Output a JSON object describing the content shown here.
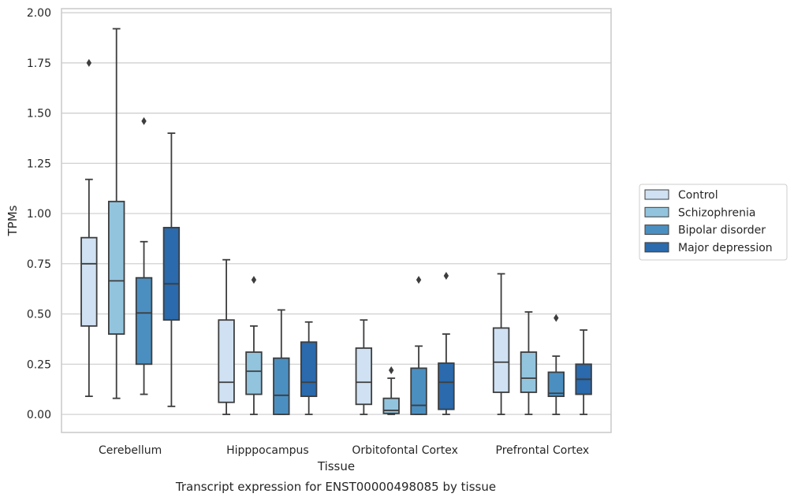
{
  "chart_data": {
    "type": "box",
    "title": "",
    "caption": "Transcript expression for ENST00000498085 by tissue",
    "xlabel": "Tissue",
    "ylabel": "TPMs",
    "ylim": [
      -0.09,
      2.02
    ],
    "yticks": [
      "0.00",
      "0.25",
      "0.50",
      "0.75",
      "1.00",
      "1.25",
      "1.50",
      "1.75",
      "2.00"
    ],
    "grid": "horizontal",
    "legend_position": "right",
    "categories": [
      "Cerebellum",
      "Hipppocampus",
      "Orbitofontal Cortex",
      "Prefrontal Cortex"
    ],
    "series": [
      {
        "name": "Control",
        "color": "#cfe1f2",
        "boxes": [
          {
            "whislo": 0.09,
            "q1": 0.44,
            "med": 0.75,
            "q3": 0.88,
            "whishi": 1.17,
            "fliers": [
              1.75
            ]
          },
          {
            "whislo": 0.0,
            "q1": 0.06,
            "med": 0.16,
            "q3": 0.47,
            "whishi": 0.77,
            "fliers": []
          },
          {
            "whislo": 0.0,
            "q1": 0.05,
            "med": 0.16,
            "q3": 0.33,
            "whishi": 0.47,
            "fliers": []
          },
          {
            "whislo": 0.0,
            "q1": 0.11,
            "med": 0.26,
            "q3": 0.43,
            "whishi": 0.7,
            "fliers": []
          }
        ]
      },
      {
        "name": "Schizophrenia",
        "color": "#93c4de",
        "boxes": [
          {
            "whislo": 0.08,
            "q1": 0.4,
            "med": 0.665,
            "q3": 1.06,
            "whishi": 1.92,
            "fliers": []
          },
          {
            "whislo": 0.0,
            "q1": 0.1,
            "med": 0.215,
            "q3": 0.31,
            "whishi": 0.44,
            "fliers": [
              0.67
            ]
          },
          {
            "whislo": 0.0,
            "q1": 0.005,
            "med": 0.02,
            "q3": 0.08,
            "whishi": 0.18,
            "fliers": [
              0.22
            ]
          },
          {
            "whislo": 0.0,
            "q1": 0.11,
            "med": 0.18,
            "q3": 0.31,
            "whishi": 0.51,
            "fliers": []
          }
        ]
      },
      {
        "name": "Bipolar disorder",
        "color": "#4b8fc1",
        "boxes": [
          {
            "whislo": 0.1,
            "q1": 0.25,
            "med": 0.505,
            "q3": 0.68,
            "whishi": 0.86,
            "fliers": [
              1.46
            ]
          },
          {
            "whislo": 0.0,
            "q1": 0.0,
            "med": 0.095,
            "q3": 0.28,
            "whishi": 0.52,
            "fliers": []
          },
          {
            "whislo": 0.0,
            "q1": 0.0,
            "med": 0.045,
            "q3": 0.23,
            "whishi": 0.34,
            "fliers": [
              0.67
            ]
          },
          {
            "whislo": 0.0,
            "q1": 0.09,
            "med": 0.105,
            "q3": 0.21,
            "whishi": 0.29,
            "fliers": [
              0.48
            ]
          }
        ]
      },
      {
        "name": "Major depression",
        "color": "#2a6aad",
        "boxes": [
          {
            "whislo": 0.04,
            "q1": 0.47,
            "med": 0.65,
            "q3": 0.93,
            "whishi": 1.4,
            "fliers": []
          },
          {
            "whislo": 0.0,
            "q1": 0.09,
            "med": 0.16,
            "q3": 0.36,
            "whishi": 0.46,
            "fliers": []
          },
          {
            "whislo": 0.0,
            "q1": 0.025,
            "med": 0.16,
            "q3": 0.255,
            "whishi": 0.4,
            "fliers": [
              0.69
            ]
          },
          {
            "whislo": 0.0,
            "q1": 0.1,
            "med": 0.175,
            "q3": 0.25,
            "whishi": 0.42,
            "fliers": []
          }
        ]
      }
    ]
  }
}
